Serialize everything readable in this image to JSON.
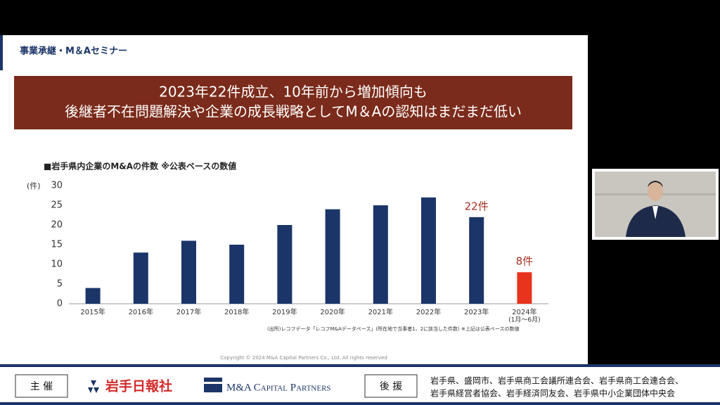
{
  "slide": {
    "header": "事業承継・M＆Aセミナー",
    "banner": [
      "2023年22件成立、10年前から増加傾向も",
      "後継者不在問題解決や企業の成長戦略としてM＆Aの認知はまだまだ低い"
    ],
    "source": "(出所)レコフデータ「レコフM&Aデータベース」(所在地で当事者1、2に該当した件数)  ※上記は公表ベースの数値",
    "copyright": "Copyright © 2024 M&A Capital Partners Co., Ltd. All rights reserved"
  },
  "chart_data": {
    "type": "bar",
    "title": "■岩手県内企業のM&Aの件数 ※公表ベースの数値",
    "y_label": "(件)",
    "categories": [
      "2015年",
      "2016年",
      "2017年",
      "2018年",
      "2019年",
      "2020年",
      "2021年",
      "2022年",
      "2023年",
      "2024年"
    ],
    "x_note": "(1月～6月)",
    "values": [
      4,
      13,
      16,
      15,
      20,
      24,
      25,
      27,
      22,
      8
    ],
    "value_labels": [
      null,
      null,
      null,
      null,
      null,
      null,
      null,
      null,
      "22件",
      "8件"
    ],
    "colors": [
      "#1b3568",
      "#1b3568",
      "#1b3568",
      "#1b3568",
      "#1b3568",
      "#1b3568",
      "#1b3568",
      "#1b3568",
      "#1b3568",
      "#e8331d"
    ],
    "ylim": [
      0,
      30
    ],
    "yticks": [
      0,
      5,
      10,
      15,
      20,
      25,
      30
    ]
  },
  "footer": {
    "organizer_label": "主 催",
    "organizers": [
      "岩手日報社",
      "M&A Capital Partners"
    ],
    "support_label": "後 援",
    "supporters": [
      "岩手県、盛岡市、岩手県商工会議所連合会、岩手県商工会連合会、",
      "岩手県経営者協会、岩手経済同友会、岩手県中小企業団体中央会"
    ]
  }
}
